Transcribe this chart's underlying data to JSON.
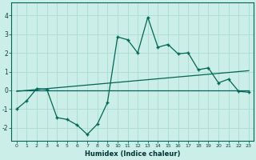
{
  "xlabel": "Humidex (Indice chaleur)",
  "background_color": "#cceee8",
  "grid_color": "#aaddcc",
  "line_color": "#006655",
  "xlim": [
    -0.5,
    23.5
  ],
  "ylim": [
    -2.7,
    4.7
  ],
  "x_data": [
    0,
    1,
    2,
    3,
    4,
    5,
    6,
    7,
    8,
    9,
    10,
    11,
    12,
    13,
    14,
    15,
    16,
    17,
    18,
    19,
    20,
    21,
    22,
    23
  ],
  "y_data": [
    -1.0,
    -0.55,
    0.1,
    0.05,
    -1.45,
    -1.55,
    -1.85,
    -2.35,
    -1.8,
    -0.65,
    2.85,
    2.7,
    2.0,
    3.9,
    2.3,
    2.45,
    1.95,
    2.0,
    1.1,
    1.2,
    0.4,
    0.6,
    -0.05,
    -0.1
  ],
  "trend_x": [
    0,
    23
  ],
  "trend_y": [
    -0.05,
    1.05
  ],
  "trend2_x": [
    0,
    23
  ],
  "trend2_y": [
    0.0,
    0.0
  ],
  "xtick_positions": [
    0,
    1,
    2,
    3,
    4,
    5,
    6,
    7,
    8,
    9,
    10,
    11,
    12,
    13,
    14,
    15,
    16,
    17,
    18,
    19,
    20,
    21,
    22,
    23
  ],
  "xtick_labels": [
    "0",
    "1",
    "2",
    "3",
    "4",
    "5",
    "6",
    "7",
    "8",
    "9",
    "10",
    "11",
    "12",
    "13",
    "14",
    "15",
    "16",
    "17",
    "18",
    "19",
    "20",
    "21",
    "22",
    "23"
  ],
  "ytick_values": [
    -2,
    -1,
    0,
    1,
    2,
    3,
    4
  ]
}
